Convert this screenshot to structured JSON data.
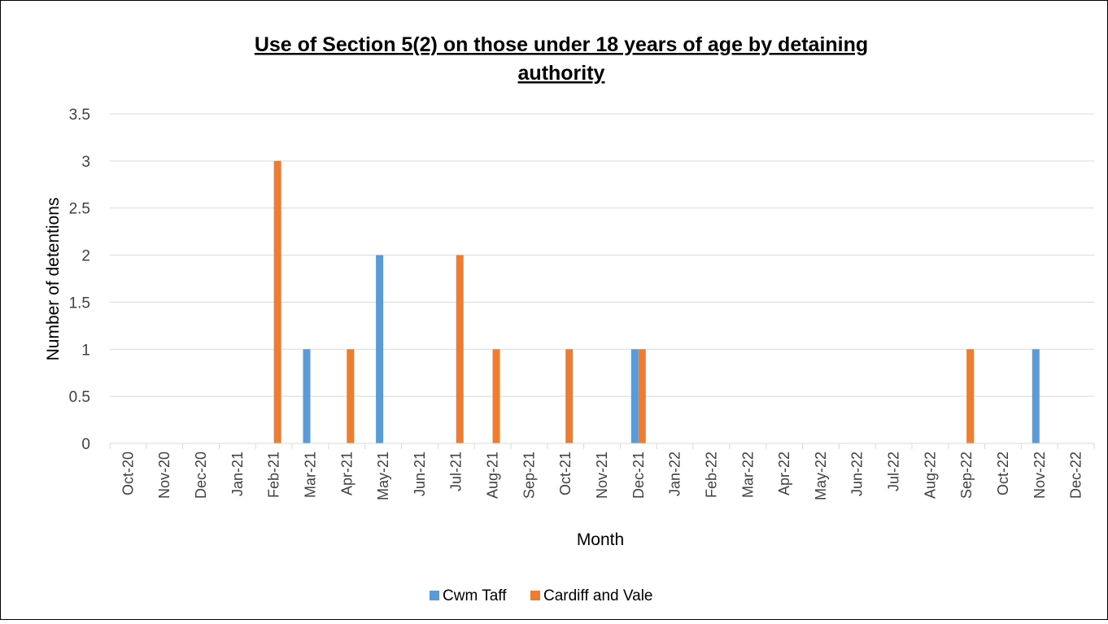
{
  "chart_data": {
    "type": "bar",
    "title_lines": [
      "Use of Section 5(2) on those under 18 years of age by detaining",
      "authority"
    ],
    "xlabel": "Month",
    "ylabel": "Number of detentions",
    "ylim": [
      0,
      3.5
    ],
    "yticks": [
      "0",
      "0.5",
      "1",
      "1.5",
      "2",
      "2.5",
      "3",
      "3.5"
    ],
    "grid": true,
    "legend_position": "bottom",
    "categories": [
      "Oct-20",
      "Nov-20",
      "Dec-20",
      "Jan-21",
      "Feb-21",
      "Mar-21",
      "Apr-21",
      "May-21",
      "Jun-21",
      "Jul-21",
      "Aug-21",
      "Sep-21",
      "Oct-21",
      "Nov-21",
      "Dec-21",
      "Jan-22",
      "Feb-22",
      "Mar-22",
      "Apr-22",
      "May-22",
      "Jun-22",
      "Jul-22",
      "Aug-22",
      "Sep-22",
      "Oct-22",
      "Nov-22",
      "Dec-22"
    ],
    "series": [
      {
        "name": "Cwm Taff",
        "color": "#5b9bd5",
        "values": [
          0,
          0,
          0,
          0,
          0,
          1,
          0,
          2,
          0,
          0,
          0,
          0,
          0,
          0,
          1,
          0,
          0,
          0,
          0,
          0,
          0,
          0,
          0,
          0,
          0,
          1,
          0
        ]
      },
      {
        "name": "Cardiff and Vale",
        "color": "#ed7d31",
        "values": [
          0,
          0,
          0,
          0,
          3,
          0,
          1,
          0,
          0,
          2,
          1,
          0,
          1,
          0,
          1,
          0,
          0,
          0,
          0,
          0,
          0,
          0,
          0,
          1,
          0,
          0,
          0
        ]
      }
    ]
  }
}
